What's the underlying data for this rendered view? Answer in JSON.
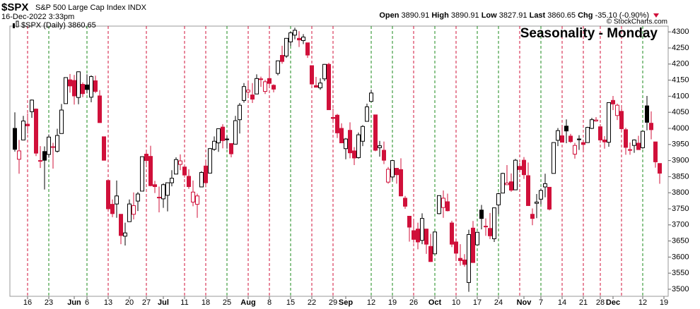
{
  "chart_data": {
    "type": "candlestick",
    "symbol": "$SPX",
    "name": "S&P 500 Large Cap Index",
    "exchange": "INDX",
    "datetime": "16-Dec-2022 3:33pm",
    "ohlc_labels": [
      "Open",
      "High",
      "Low",
      "Last"
    ],
    "change_label": "Chg",
    "change": "-35.10 (-0.90%)",
    "series_name": "$SPX (Daily)",
    "watermark": "© StockCharts.com",
    "annotation": "Seasonality - Monday",
    "annotation_color": "#1414d2",
    "up_color": "#000000",
    "down_color": "#d0103a",
    "monday_up_color": "#1a8a1a",
    "monday_down_color": "#d0103a",
    "x": [
      "2022-05-11",
      "2022-05-12",
      "2022-05-13",
      "2022-05-16",
      "2022-05-17",
      "2022-05-18",
      "2022-05-19",
      "2022-05-20",
      "2022-05-23",
      "2022-05-24",
      "2022-05-25",
      "2022-05-26",
      "2022-05-27",
      "2022-05-31",
      "2022-06-01",
      "2022-06-02",
      "2022-06-03",
      "2022-06-06",
      "2022-06-07",
      "2022-06-08",
      "2022-06-09",
      "2022-06-10",
      "2022-06-13",
      "2022-06-14",
      "2022-06-15",
      "2022-06-16",
      "2022-06-17",
      "2022-06-21",
      "2022-06-22",
      "2022-06-23",
      "2022-06-24",
      "2022-06-27",
      "2022-06-28",
      "2022-06-29",
      "2022-06-30",
      "2022-07-01",
      "2022-07-05",
      "2022-07-06",
      "2022-07-07",
      "2022-07-08",
      "2022-07-11",
      "2022-07-12",
      "2022-07-13",
      "2022-07-14",
      "2022-07-15",
      "2022-07-18",
      "2022-07-19",
      "2022-07-20",
      "2022-07-21",
      "2022-07-22",
      "2022-07-25",
      "2022-07-26",
      "2022-07-27",
      "2022-07-28",
      "2022-07-29",
      "2022-08-01",
      "2022-08-02",
      "2022-08-03",
      "2022-08-04",
      "2022-08-05",
      "2022-08-08",
      "2022-08-09",
      "2022-08-10",
      "2022-08-11",
      "2022-08-12",
      "2022-08-15",
      "2022-08-16",
      "2022-08-17",
      "2022-08-18",
      "2022-08-19",
      "2022-08-22",
      "2022-08-23",
      "2022-08-24",
      "2022-08-25",
      "2022-08-26",
      "2022-08-29",
      "2022-08-30",
      "2022-08-31",
      "2022-09-01",
      "2022-09-02",
      "2022-09-06",
      "2022-09-07",
      "2022-09-08",
      "2022-09-09",
      "2022-09-12",
      "2022-09-13",
      "2022-09-14",
      "2022-09-15",
      "2022-09-16",
      "2022-09-19",
      "2022-09-20",
      "2022-09-21",
      "2022-09-22",
      "2022-09-23",
      "2022-09-26",
      "2022-09-27",
      "2022-09-28",
      "2022-09-29",
      "2022-09-30",
      "2022-10-03",
      "2022-10-04",
      "2022-10-05",
      "2022-10-06",
      "2022-10-07",
      "2022-10-10",
      "2022-10-11",
      "2022-10-12",
      "2022-10-13",
      "2022-10-14",
      "2022-10-17",
      "2022-10-18",
      "2022-10-19",
      "2022-10-20",
      "2022-10-21",
      "2022-10-24",
      "2022-10-25",
      "2022-10-26",
      "2022-10-27",
      "2022-10-28",
      "2022-10-31",
      "2022-11-01",
      "2022-11-02",
      "2022-11-03",
      "2022-11-04",
      "2022-11-07",
      "2022-11-08",
      "2022-11-09",
      "2022-11-10",
      "2022-11-11",
      "2022-11-14",
      "2022-11-15",
      "2022-11-16",
      "2022-11-17",
      "2022-11-18",
      "2022-11-21",
      "2022-11-22",
      "2022-11-23",
      "2022-11-25",
      "2022-11-28",
      "2022-11-29",
      "2022-11-30",
      "2022-12-01",
      "2022-12-02",
      "2022-12-05",
      "2022-12-06",
      "2022-12-07",
      "2022-12-08",
      "2022-12-09",
      "2022-12-12",
      "2022-12-13",
      "2022-12-14",
      "2022-12-15",
      "2022-12-16"
    ],
    "open": [
      4000,
      3904,
      3964,
      4013,
      4052,
      4060,
      3899,
      3928,
      3919,
      3943,
      3929,
      3984,
      4077,
      4151,
      4149,
      4096,
      4137,
      4135,
      4097,
      4148,
      4101,
      3974,
      3838,
      3764,
      3765,
      3733,
      3665,
      3710,
      3733,
      3774,
      3805,
      3920,
      3913,
      3825,
      3786,
      3781,
      3792,
      3831,
      3858,
      3888,
      3880,
      3851,
      3771,
      3764,
      3818,
      3883,
      3861,
      3935,
      3955,
      4004,
      3965,
      3953,
      3951,
      4027,
      4087,
      4113,
      4104,
      4107,
      4154,
      4115,
      4155,
      4134,
      4171,
      4227,
      4225,
      4269,
      4290,
      4280,
      4273,
      4266,
      4195,
      4133,
      4126,
      4154,
      4199,
      4034,
      4041,
      4000,
      3937,
      3994,
      3930,
      3909,
      3960,
      4022,
      4084,
      4042,
      3940,
      3932,
      3833,
      3849,
      3876,
      3872,
      3783,
      3727,
      3682,
      3687,
      3652,
      3687,
      3633,
      3610,
      3735,
      3754,
      3772,
      3706,
      3647,
      3596,
      3591,
      3521,
      3690,
      3638,
      3746,
      3696,
      3689,
      3657,
      3762,
      3799,
      3825,
      3834,
      3809,
      3882,
      3901,
      3853,
      3733,
      3767,
      3780,
      3818,
      3817,
      3860,
      3963,
      3977,
      4007,
      3976,
      3920,
      3967,
      3956,
      3956,
      4000,
      4023,
      4005,
      3964,
      3957,
      4087,
      4040,
      4053,
      3996,
      3934,
      3947,
      3954,
      3940,
      4070,
      4016,
      3958,
      3890.91
    ],
    "high": [
      4050,
      3964,
      4039,
      4047,
      4090,
      4062,
      3945,
      3944,
      3981,
      3955,
      3999,
      4076,
      4158,
      4169,
      4166,
      4177,
      4143,
      4168,
      4165,
      4164,
      4119,
      3974,
      3839,
      3779,
      3838,
      3733,
      3707,
      3779,
      3801,
      3802,
      3913,
      3928,
      3946,
      3837,
      3819,
      3829,
      3832,
      3870,
      3910,
      3919,
      3880,
      3873,
      3838,
      3797,
      3867,
      3903,
      3939,
      3975,
      3999,
      4013,
      3976,
      3953,
      4039,
      4079,
      4141,
      4145,
      4141,
      4168,
      4161,
      4151,
      4187,
      4137,
      4211,
      4257,
      4280,
      4301,
      4313,
      4302,
      4293,
      4266,
      4196,
      4160,
      4156,
      4200,
      4204,
      4062,
      4045,
      4016,
      3970,
      4019,
      3942,
      3987,
      4010,
      4077,
      4120,
      4042,
      3961,
      3959,
      3880,
      3901,
      3877,
      3907,
      3790,
      3727,
      3716,
      3707,
      3736,
      3688,
      3672,
      3679,
      3791,
      3807,
      3797,
      3713,
      3652,
      3640,
      3609,
      3685,
      3712,
      3678,
      3762,
      3720,
      3737,
      3753,
      3800,
      3862,
      3886,
      3860,
      3905,
      3893,
      3911,
      3894,
      3751,
      3796,
      3813,
      3859,
      3818,
      3956,
      4001,
      4009,
      4028,
      3983,
      3955,
      3979,
      3962,
      4005,
      4033,
      4035,
      4013,
      3976,
      4080,
      4101,
      4077,
      4063,
      4002,
      3956,
      3966,
      3977,
      3991,
      4101,
      4053,
      3958,
      3890.91
    ],
    "low": [
      3928,
      3859,
      3964,
      3984,
      4033,
      3914,
      3877,
      3810,
      3909,
      3875,
      3925,
      3984,
      4077,
      4111,
      4074,
      4075,
      4097,
      4109,
      4081,
      4110,
      4017,
      3900,
      3745,
      3724,
      3722,
      3640,
      3636,
      3710,
      3717,
      3743,
      3805,
      3889,
      3820,
      3799,
      3739,
      3753,
      3742,
      3820,
      3858,
      3870,
      3847,
      3812,
      3758,
      3722,
      3818,
      3817,
      3861,
      3930,
      3927,
      3938,
      3937,
      3910,
      3951,
      3984,
      4080,
      4096,
      4079,
      4107,
      4129,
      4107,
      4128,
      4112,
      4165,
      4201,
      4219,
      4256,
      4277,
      4253,
      4262,
      4219,
      4135,
      4127,
      4120,
      4147,
      4057,
      4017,
      3970,
      3954,
      3904,
      3907,
      3886,
      3906,
      3945,
      4022,
      4084,
      3929,
      3912,
      3889,
      3828,
      3838,
      3828,
      3789,
      3750,
      3648,
      3644,
      3624,
      3640,
      3610,
      3585,
      3610,
      3733,
      3722,
      3742,
      3631,
      3588,
      3573,
      3570,
      3492,
      3582,
      3638,
      3686,
      3666,
      3656,
      3647,
      3733,
      3799,
      3824,
      3803,
      3808,
      3863,
      3843,
      3759,
      3699,
      3721,
      3764,
      3786,
      3745,
      3860,
      3945,
      3956,
      3954,
      3955,
      3906,
      3933,
      3933,
      3956,
      3998,
      4021,
      3955,
      3937,
      3943,
      4057,
      4026,
      3989,
      3918,
      3918,
      3924,
      3933,
      3937,
      3994,
      3966,
      3878,
      3827.91
    ],
    "close": [
      3935,
      3930,
      4023,
      4008,
      4088,
      3923,
      3900,
      3901,
      3973,
      3941,
      3978,
      4057,
      4158,
      4132,
      4101,
      4176,
      4108,
      4121,
      4161,
      4115,
      4018,
      3901,
      3750,
      3735,
      3790,
      3667,
      3675,
      3765,
      3760,
      3796,
      3912,
      3900,
      3822,
      3819,
      3785,
      3825,
      3831,
      3845,
      3903,
      3899,
      3855,
      3819,
      3802,
      3790,
      3863,
      3831,
      3937,
      3960,
      3999,
      3962,
      3967,
      3921,
      4024,
      4072,
      4130,
      4119,
      4091,
      4155,
      4152,
      4145,
      4140,
      4122,
      4210,
      4208,
      4280,
      4297,
      4305,
      4275,
      4284,
      4228,
      4138,
      4128,
      4141,
      4199,
      4058,
      4031,
      3986,
      3955,
      3967,
      3924,
      3908,
      3980,
      4006,
      4067,
      4110,
      3932,
      3946,
      3901,
      3873,
      3900,
      3856,
      3790,
      3758,
      3693,
      3655,
      3647,
      3720,
      3640,
      3586,
      3678,
      3791,
      3783,
      3744,
      3640,
      3612,
      3589,
      3577,
      3670,
      3583,
      3677,
      3720,
      3695,
      3666,
      3753,
      3797,
      3860,
      3830,
      3808,
      3901,
      3872,
      3856,
      3760,
      3720,
      3771,
      3807,
      3828,
      3749,
      3956,
      3993,
      3957,
      3992,
      3959,
      3947,
      3965,
      3950,
      4003,
      4027,
      4026,
      3964,
      3958,
      4080,
      4076,
      4072,
      3999,
      3941,
      3933,
      3964,
      3934,
      3991,
      4019,
      3996,
      3896,
      3860.65
    ],
    "ylim": [
      3478,
      4318
    ],
    "yticks": [
      3500,
      3550,
      3600,
      3650,
      3700,
      3750,
      3800,
      3850,
      3900,
      3950,
      4000,
      4050,
      4100,
      4150,
      4200,
      4250,
      4300
    ],
    "xticks": [
      {
        "value": "2022-05-16",
        "label": "16"
      },
      {
        "value": "2022-05-23",
        "label": "23"
      },
      {
        "value": "2022-06-01",
        "label": "Jun"
      },
      {
        "value": "2022-06-06",
        "label": "6"
      },
      {
        "value": "2022-06-13",
        "label": "13"
      },
      {
        "value": "2022-06-20",
        "label": "20"
      },
      {
        "value": "2022-06-27",
        "label": "27"
      },
      {
        "value": "2022-07-01",
        "label": "Jul"
      },
      {
        "value": "2022-07-11",
        "label": "11"
      },
      {
        "value": "2022-07-18",
        "label": "18"
      },
      {
        "value": "2022-07-25",
        "label": "25"
      },
      {
        "value": "2022-08-01",
        "label": "Aug"
      },
      {
        "value": "2022-08-08",
        "label": "8"
      },
      {
        "value": "2022-08-15",
        "label": "15"
      },
      {
        "value": "2022-08-22",
        "label": "22"
      },
      {
        "value": "2022-08-29",
        "label": "29"
      },
      {
        "value": "2022-09-01",
        "label": "Sep"
      },
      {
        "value": "2022-09-12",
        "label": "12"
      },
      {
        "value": "2022-09-19",
        "label": "19"
      },
      {
        "value": "2022-09-26",
        "label": "26"
      },
      {
        "value": "2022-10-03",
        "label": "Oct"
      },
      {
        "value": "2022-10-10",
        "label": "10"
      },
      {
        "value": "2022-10-17",
        "label": "17"
      },
      {
        "value": "2022-10-24",
        "label": "24"
      },
      {
        "value": "2022-11-01",
        "label": "Nov"
      },
      {
        "value": "2022-11-07",
        "label": "7"
      },
      {
        "value": "2022-11-14",
        "label": "14"
      },
      {
        "value": "2022-11-21",
        "label": "21"
      },
      {
        "value": "2022-11-28",
        "label": "28"
      },
      {
        "value": "2022-12-01",
        "label": "Dec"
      },
      {
        "value": "2022-12-12",
        "label": "12"
      },
      {
        "value": "2022-12-19",
        "label": "19"
      }
    ]
  }
}
